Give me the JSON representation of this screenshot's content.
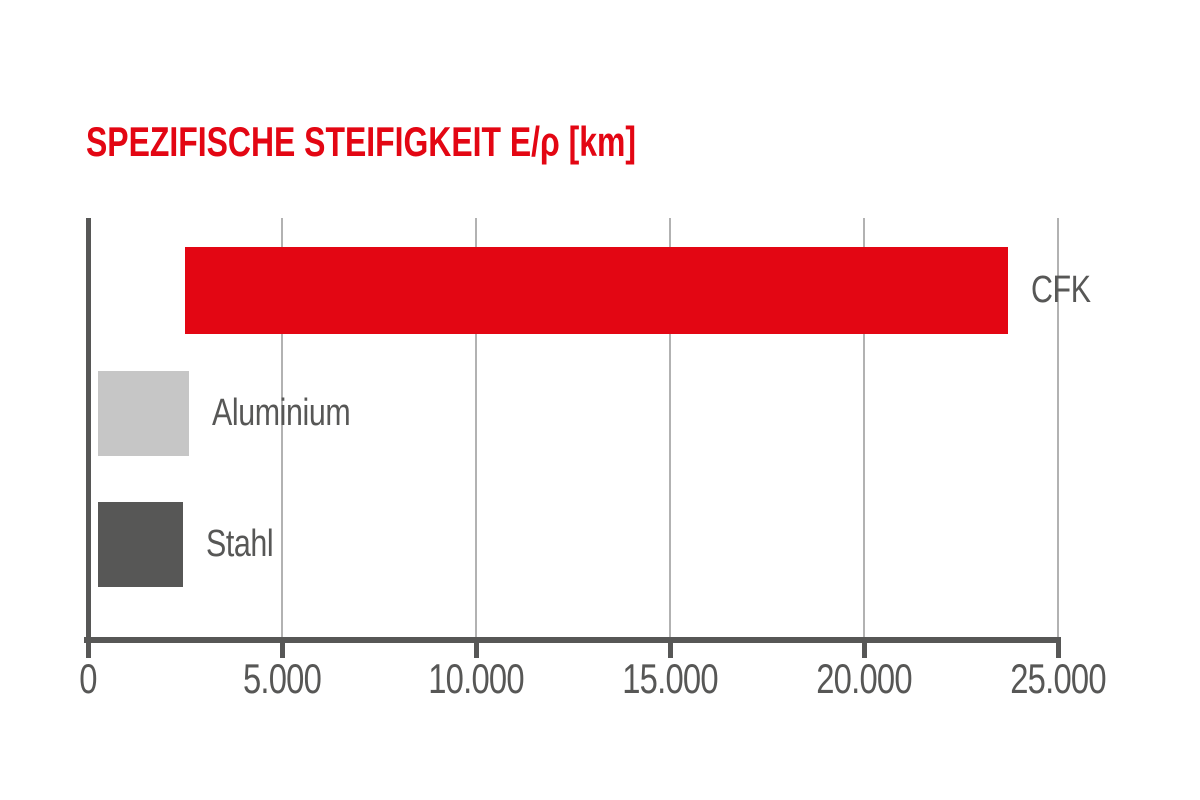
{
  "chart_data": {
    "type": "bar",
    "orientation": "horizontal",
    "title": "SPEZIFISCHE STEIFIGKEIT E/ρ [km]",
    "unit": "km",
    "grid": true,
    "legend": "none",
    "x_axis": {
      "min": 0,
      "max": 25000,
      "tick_values": [
        0,
        5000,
        10000,
        15000,
        20000,
        25000
      ],
      "tick_labels": [
        "0",
        "5.000",
        "10.000",
        "15.000",
        "20.000",
        "25.000"
      ]
    },
    "bars": [
      {
        "label": "CFK",
        "start": 2500,
        "end": 23700,
        "color": "#e30613"
      },
      {
        "label": "Aluminium",
        "start": 250,
        "end": 2600,
        "color": "#c6c6c6"
      },
      {
        "label": "Stahl",
        "start": 250,
        "end": 2450,
        "color": "#575756"
      }
    ],
    "colors": {
      "title": "#e30613",
      "axis": "#575756",
      "gridline": "#b2b2b2",
      "bar_label": "#575756",
      "background": "#ffffff"
    }
  }
}
